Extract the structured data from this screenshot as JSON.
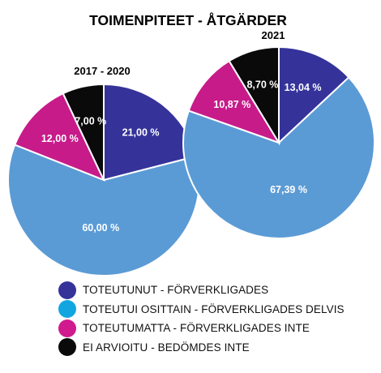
{
  "chart_data": {
    "type": "pie",
    "title": "TOIMENPITEET - ÅTGÄRDER",
    "categories": [
      "TOTEUTUNUT - FÖRVERKLIGADES",
      "TOTEUTUI OSITTAIN - FÖRVERKLIGADES DELVIS",
      "TOTEUTUMATTA - FÖRVERKLIGADES INTE",
      "EI ARVIOITU - BEDÖMDES INTE"
    ],
    "colors": [
      "#35339a",
      "#5b9bd5",
      "#c71b8a",
      "#0a0a0a"
    ],
    "legend_colors": [
      "#35339a",
      "#12a6e0",
      "#d01a8e",
      "#0a0a0a"
    ],
    "legend_position": "bottom",
    "series": [
      {
        "name": "2017 - 2020",
        "values": [
          21.0,
          60.0,
          12.0,
          7.0
        ],
        "labels": [
          "21,00 %",
          "60,00 %",
          "12,00 %",
          "7,00 %"
        ]
      },
      {
        "name": "2021",
        "values": [
          13.04,
          67.39,
          10.87,
          8.7
        ],
        "labels": [
          "13,04 %",
          "67,39 %",
          "10,87 %",
          "8,70 %"
        ]
      }
    ]
  }
}
